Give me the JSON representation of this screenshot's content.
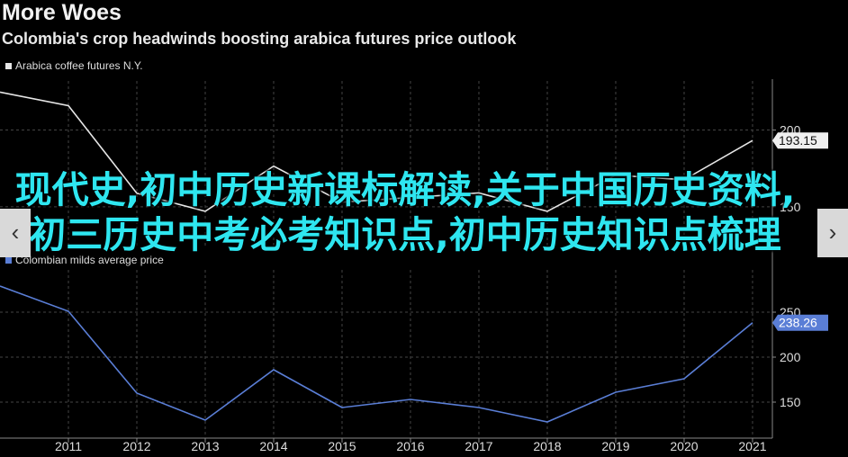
{
  "header": {
    "title": "More Woes",
    "subtitle": "Colombia's crop headwinds boosting arabica futures price outlook"
  },
  "chart_data": [
    {
      "type": "line",
      "series": [
        {
          "name": "Arabica coffee futures N.Y.",
          "color": "#e6e6e6",
          "values": [
            224.7,
            215.9,
            158.8,
            147,
            176.5,
            153,
            156,
            159,
            147,
            170.6,
            167.6,
            193.15
          ]
        }
      ],
      "x": [
        2010,
        2011,
        2012,
        2013,
        2014,
        2015,
        2016,
        2017,
        2018,
        2019,
        2020,
        2021
      ],
      "xlim": [
        2010,
        2021.29
      ],
      "ylim": [
        123.5,
        232
      ],
      "yticks": [
        150,
        200
      ],
      "grid": true
    },
    {
      "type": "line",
      "series": [
        {
          "name": "Colombian milds average price",
          "color": "#5a7ed6",
          "values": [
            279,
            251,
            160,
            130,
            186,
            144,
            153,
            144,
            128,
            161,
            176,
            238.26
          ]
        }
      ],
      "x": [
        2010,
        2011,
        2012,
        2013,
        2014,
        2015,
        2016,
        2017,
        2018,
        2019,
        2020,
        2021
      ],
      "xlim": [
        2010,
        2021.29
      ],
      "ylim": [
        112,
        297
      ],
      "yticks": [
        150,
        200,
        250
      ],
      "xticks": [
        2011,
        2012,
        2013,
        2014,
        2015,
        2016,
        2017,
        2018,
        2019,
        2020,
        2021
      ],
      "grid": true
    }
  ],
  "overlay": {
    "text": "现代史,初中历史新课标解读,关于中国历史资料,初三历史中考必考知识点,初中历史知识点梳理"
  }
}
